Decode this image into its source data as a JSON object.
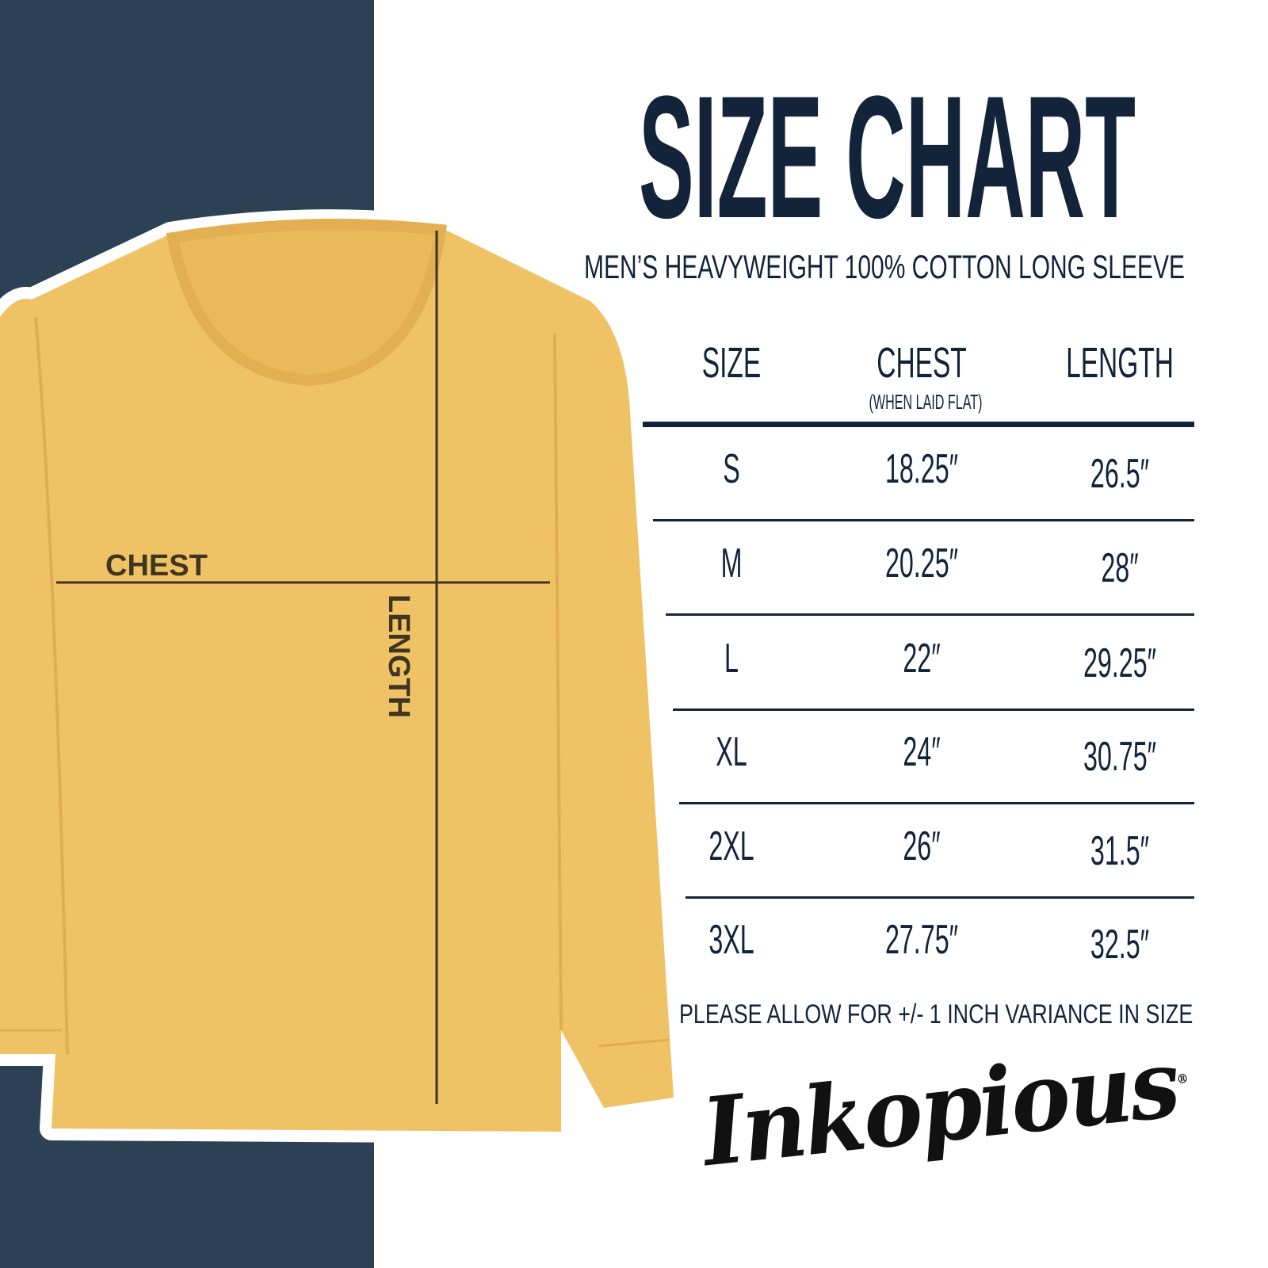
{
  "header": {
    "title": "SIZE CHART",
    "subtitle": "MEN’S HEAVYWEIGHT 100% COTTON LONG SLEEVE"
  },
  "diagram": {
    "chest_label": "CHEST",
    "length_label": "LENGTH",
    "shirt_color": "#f0c266",
    "panel_color": "#2d4155"
  },
  "table": {
    "columns": [
      {
        "label": "SIZE"
      },
      {
        "label": "CHEST",
        "sublabel": "(WHEN LAID FLAT)"
      },
      {
        "label": "LENGTH"
      }
    ],
    "rows": [
      {
        "size": "S",
        "chest": "18.25″",
        "length": "26.5″"
      },
      {
        "size": "M",
        "chest": "20.25″",
        "length": "28″"
      },
      {
        "size": "L",
        "chest": "22″",
        "length": "29.25″"
      },
      {
        "size": "XL",
        "chest": "24″",
        "length": "30.75″"
      },
      {
        "size": "2XL",
        "chest": "26″",
        "length": "31.5″"
      },
      {
        "size": "3XL",
        "chest": "27.75″",
        "length": "32.5″"
      }
    ]
  },
  "footer": {
    "note": "PLEASE ALLOW FOR +/- 1 INCH VARIANCE IN SIZE",
    "brand": "Inkopious",
    "brand_mark": "®"
  },
  "colors": {
    "text": "#13233a"
  }
}
